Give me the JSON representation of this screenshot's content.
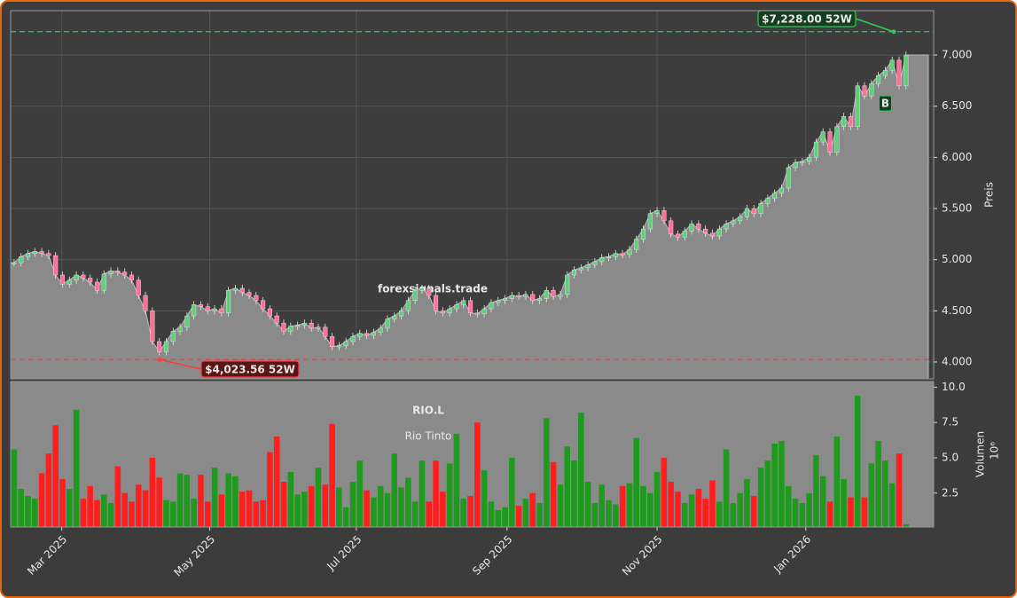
{
  "chart_data": [
    {
      "type": "candlestick",
      "watermark": "forexsignals.trade",
      "symbol": "RIO.L",
      "name": "Rio Tinto",
      "ylabel": "Preis",
      "ylim": [
        3835,
        7434
      ],
      "yticks": [
        {
          "value": 4000,
          "label": "4.000"
        },
        {
          "value": 4500,
          "label": "4.500"
        },
        {
          "value": 5000,
          "label": "5.000"
        },
        {
          "value": 5500,
          "label": "5.500"
        },
        {
          "value": 6000,
          "label": "6.000"
        },
        {
          "value": 6500,
          "label": "6.500"
        },
        {
          "value": 7000,
          "label": "7.000"
        }
      ],
      "xlim": [
        -0.5,
        133
      ],
      "values": [
        4970,
        5030,
        5060,
        5080,
        5060,
        5040,
        4850,
        4760,
        4800,
        4850,
        4820,
        4780,
        4700,
        4860,
        4890,
        4880,
        4850,
        4800,
        4650,
        4500,
        4200,
        4100,
        4200,
        4300,
        4340,
        4450,
        4560,
        4540,
        4500,
        4520,
        4480,
        4700,
        4720,
        4680,
        4650,
        4600,
        4520,
        4450,
        4380,
        4300,
        4350,
        4360,
        4380,
        4330,
        4340,
        4250,
        4150,
        4160,
        4200,
        4250,
        4280,
        4260,
        4290,
        4330,
        4420,
        4450,
        4500,
        4600,
        4700,
        4720,
        4650,
        4500,
        4480,
        4520,
        4560,
        4600,
        4480,
        4470,
        4520,
        4580,
        4600,
        4620,
        4650,
        4640,
        4660,
        4600,
        4620,
        4700,
        4640,
        4660,
        4850,
        4900,
        4920,
        4950,
        4980,
        5020,
        5030,
        5060,
        5050,
        5100,
        5200,
        5300,
        5450,
        5480,
        5380,
        5250,
        5220,
        5280,
        5350,
        5300,
        5260,
        5230,
        5300,
        5350,
        5380,
        5420,
        5500,
        5450,
        5550,
        5600,
        5650,
        5700,
        5900,
        5950,
        5960,
        6000,
        6150,
        6250,
        6050,
        6300,
        6400,
        6300,
        6700,
        6600,
        6720,
        6800,
        6850,
        6950,
        6700,
        7000
      ],
      "up_color": "#5fd07a",
      "down_color": "#ff6f9a",
      "area_color": "#8a8a8a",
      "annotations": [
        {
          "value": 7228,
          "label": "$7,228.00 52W",
          "color": "#2ecc55"
        },
        {
          "value": 4023.56,
          "label": "$4,023.56 52W",
          "color": "#ff3b3b"
        }
      ],
      "marker": "B"
    },
    {
      "type": "bar",
      "ylabel": "Volumen",
      "multiplier": "10⁶",
      "ylim": [
        0.1,
        10.4
      ],
      "yticks": [
        2.5,
        {
          "value": 5,
          "label": "5.0"
        },
        7.5,
        {
          "value": 10,
          "label": "10.0"
        }
      ],
      "xlim": [
        -0.5,
        133
      ],
      "xticks": [
        {
          "value": 6.9,
          "label": "Mar 2025"
        },
        {
          "value": 28.3,
          "label": "May 2025"
        },
        {
          "value": 49.5,
          "label": "Jul 2025"
        },
        {
          "value": 71.3,
          "label": "Sep 2025"
        },
        {
          "value": 93,
          "label": "Nov 2025"
        },
        {
          "value": 114.5,
          "label": "Jan 2026"
        }
      ],
      "values": [
        5.6,
        2.8,
        2.3,
        2.1,
        3.9,
        5.3,
        7.3,
        3.5,
        2.8,
        8.4,
        2.1,
        3.0,
        2.0,
        2.4,
        1.8,
        4.4,
        2.5,
        1.9,
        3.1,
        2.7,
        5.0,
        3.6,
        2.0,
        1.9,
        3.9,
        3.8,
        2.1,
        3.8,
        1.9,
        4.3,
        2.4,
        3.9,
        3.7,
        2.6,
        2.7,
        1.9,
        2.0,
        5.4,
        6.5,
        3.3,
        4.0,
        2.4,
        2.6,
        3.0,
        4.3,
        3.1,
        7.4,
        2.9,
        1.5,
        3.3,
        4.8,
        2.7,
        2.2,
        3.0,
        2.5,
        5.3,
        2.9,
        3.6,
        1.9,
        4.8,
        1.9,
        4.8,
        2.6,
        4.6,
        6.7,
        2.1,
        2.3,
        7.5,
        4.1,
        1.9,
        1.3,
        1.5,
        5.0,
        1.6,
        2.1,
        2.5,
        1.8,
        7.8,
        4.7,
        3.1,
        5.8,
        4.8,
        8.2,
        3.3,
        1.8,
        3.1,
        2.0,
        1.7,
        3.0,
        3.2,
        6.4,
        3.0,
        2.5,
        4.0,
        5.0,
        3.3,
        2.6,
        1.8,
        2.4,
        2.8,
        2.1,
        3.4,
        1.9,
        5.6,
        1.8,
        2.5,
        3.5,
        2.3,
        4.3,
        4.8,
        6.0,
        6.2,
        3.0,
        2.1,
        1.8,
        2.5,
        5.2,
        3.7,
        1.9,
        6.5,
        3.5,
        2.2,
        9.4,
        2.2,
        4.6,
        6.2,
        4.8,
        3.2,
        5.3,
        0.3
      ],
      "up_color": "#1f9a1f",
      "down_color": "#ff1e1e"
    }
  ]
}
